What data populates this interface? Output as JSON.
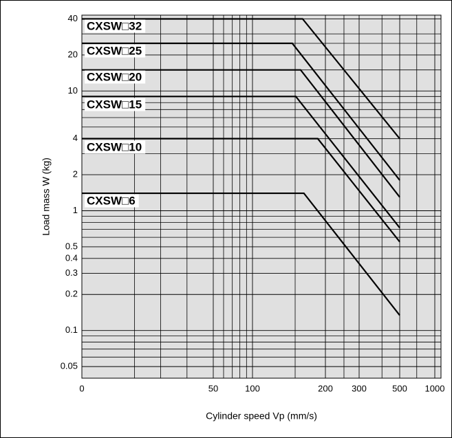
{
  "chart_data": {
    "type": "line",
    "xlabel": "Cylinder speed Vp (mm/s)",
    "ylabel": "Load mass W (kg)",
    "xscale": "log",
    "yscale": "log",
    "grid": true,
    "xlim": [
      0,
      1200
    ],
    "xticks": [
      0,
      50,
      100,
      200,
      300,
      500,
      1000
    ],
    "xminor": [
      20,
      30,
      40,
      60,
      70,
      80,
      90,
      150,
      250,
      400,
      700
    ],
    "ylim": [
      0.04,
      43
    ],
    "yticks": [
      0.05,
      0.1,
      0.2,
      0.3,
      0.4,
      0.5,
      1,
      2,
      4,
      10,
      20,
      40
    ],
    "yminor": [
      0.06,
      0.07,
      0.08,
      0.09,
      0.6,
      0.7,
      0.8,
      0.9,
      3,
      5,
      6,
      7,
      8,
      9,
      15,
      25,
      30
    ],
    "series": [
      {
        "name": "CXSW□32",
        "color": "#000000",
        "x": [
          0,
          161,
          500
        ],
        "values": [
          40,
          40,
          4
        ]
      },
      {
        "name": "CXSW□25",
        "color": "#000000",
        "x": [
          0,
          146,
          500
        ],
        "values": [
          25,
          25,
          1.8
        ]
      },
      {
        "name": "CXSW□20",
        "color": "#000000",
        "x": [
          0,
          158,
          500
        ],
        "values": [
          15,
          15,
          1.3
        ]
      },
      {
        "name": "CXSW□15",
        "color": "#000000",
        "x": [
          0,
          151,
          500
        ],
        "values": [
          9,
          9,
          0.72
        ]
      },
      {
        "name": "CXSW□10",
        "color": "#000000",
        "x": [
          0,
          186,
          500
        ],
        "values": [
          4,
          4,
          0.55
        ]
      },
      {
        "name": "CXSW□6",
        "color": "#000000",
        "x": [
          0,
          163,
          500
        ],
        "values": [
          1.4,
          1.4,
          0.134
        ]
      }
    ]
  }
}
